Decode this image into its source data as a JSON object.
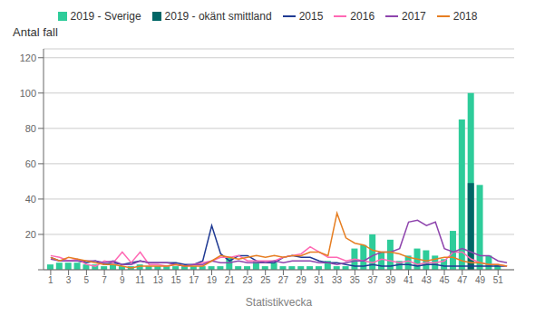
{
  "chart_data": {
    "type": "bar",
    "xlabel": "Statistikvecka",
    "ylabel": "Antal fall",
    "x": [
      1,
      2,
      3,
      4,
      5,
      6,
      7,
      8,
      9,
      10,
      11,
      12,
      13,
      14,
      15,
      16,
      17,
      18,
      19,
      20,
      21,
      22,
      23,
      24,
      25,
      26,
      27,
      28,
      29,
      30,
      31,
      32,
      33,
      34,
      35,
      36,
      37,
      38,
      39,
      40,
      41,
      42,
      43,
      44,
      45,
      46,
      47,
      48,
      49,
      50,
      51,
      52
    ],
    "series": [
      {
        "name": "2019 - Sverige",
        "type": "bar",
        "color": "#2ECC9A",
        "values": [
          3,
          4,
          4,
          4,
          3,
          3,
          2,
          3,
          2,
          2,
          3,
          2,
          2,
          2,
          2,
          2,
          2,
          2,
          2,
          2,
          7,
          2,
          2,
          5,
          2,
          4,
          2,
          2,
          2,
          2,
          2,
          5,
          2,
          2,
          12,
          14,
          20,
          10,
          17,
          5,
          8,
          12,
          11,
          8,
          6,
          22,
          85,
          100,
          48,
          8,
          3,
          0
        ]
      },
      {
        "name": "2019 - okänt smittland",
        "type": "bar",
        "color": "#006666",
        "values": [
          0,
          0,
          0,
          0,
          0,
          0,
          0,
          0,
          0,
          0,
          0,
          0,
          0,
          0,
          0,
          0,
          0,
          0,
          0,
          0,
          0,
          0,
          0,
          0,
          0,
          0,
          0,
          0,
          0,
          0,
          0,
          0,
          0,
          0,
          0,
          0,
          0,
          0,
          0,
          0,
          0,
          0,
          0,
          0,
          0,
          0,
          0,
          49,
          0,
          0,
          0,
          0
        ]
      },
      {
        "name": "2015",
        "type": "line",
        "color": "#1F3A93",
        "values": [
          7,
          5,
          5,
          5,
          4,
          5,
          3,
          4,
          3,
          4,
          5,
          4,
          4,
          4,
          4,
          3,
          3,
          5,
          25,
          9,
          5,
          8,
          8,
          5,
          4,
          4,
          7,
          8,
          7,
          7,
          5,
          4,
          4,
          3,
          2,
          2,
          3,
          2,
          2,
          3,
          3,
          2,
          3,
          3,
          2,
          2,
          2,
          2,
          2,
          2,
          2,
          2
        ]
      },
      {
        "name": "2016",
        "type": "line",
        "color": "#FF69B4",
        "values": [
          8,
          7,
          5,
          6,
          3,
          2,
          5,
          4,
          10,
          4,
          10,
          3,
          3,
          2,
          3,
          2,
          3,
          4,
          5,
          7,
          7,
          8,
          5,
          5,
          5,
          5,
          7,
          8,
          9,
          13,
          10,
          7,
          7,
          5,
          6,
          5,
          4,
          6,
          5,
          4,
          5,
          3,
          4,
          4,
          5,
          10,
          10,
          6,
          4,
          3,
          3,
          2
        ]
      },
      {
        "name": "2017",
        "type": "line",
        "color": "#8E44AD",
        "values": [
          6,
          5,
          5,
          5,
          5,
          5,
          4,
          5,
          3,
          3,
          5,
          4,
          4,
          4,
          3,
          2,
          3,
          3,
          5,
          4,
          4,
          5,
          4,
          4,
          4,
          5,
          4,
          5,
          5,
          5,
          4,
          4,
          3,
          4,
          5,
          5,
          8,
          10,
          10,
          12,
          27,
          28,
          25,
          27,
          12,
          10,
          12,
          10,
          8,
          8,
          5,
          4
        ]
      },
      {
        "name": "2018",
        "type": "line",
        "color": "#E67E22",
        "values": [
          7,
          5,
          7,
          6,
          5,
          4,
          3,
          3,
          2,
          1,
          2,
          2,
          2,
          2,
          3,
          2,
          2,
          2,
          5,
          8,
          7,
          6,
          7,
          8,
          7,
          8,
          7,
          8,
          8,
          10,
          10,
          8,
          32,
          18,
          15,
          14,
          11,
          10,
          10,
          9,
          7,
          6,
          5,
          6,
          7,
          7,
          5,
          4,
          4,
          3,
          3,
          2
        ]
      }
    ],
    "xlim": [
      0.2,
      52.8
    ],
    "xticks": [
      1,
      3,
      5,
      7,
      9,
      11,
      13,
      15,
      17,
      19,
      21,
      23,
      25,
      27,
      29,
      31,
      33,
      35,
      37,
      39,
      41,
      43,
      45,
      47,
      49,
      51
    ],
    "ylim": [
      0,
      125
    ],
    "yticks": [
      {
        "value": 0,
        "label": ""
      },
      20,
      40,
      60,
      80,
      100,
      120
    ],
    "grid": true,
    "legend": "top"
  }
}
